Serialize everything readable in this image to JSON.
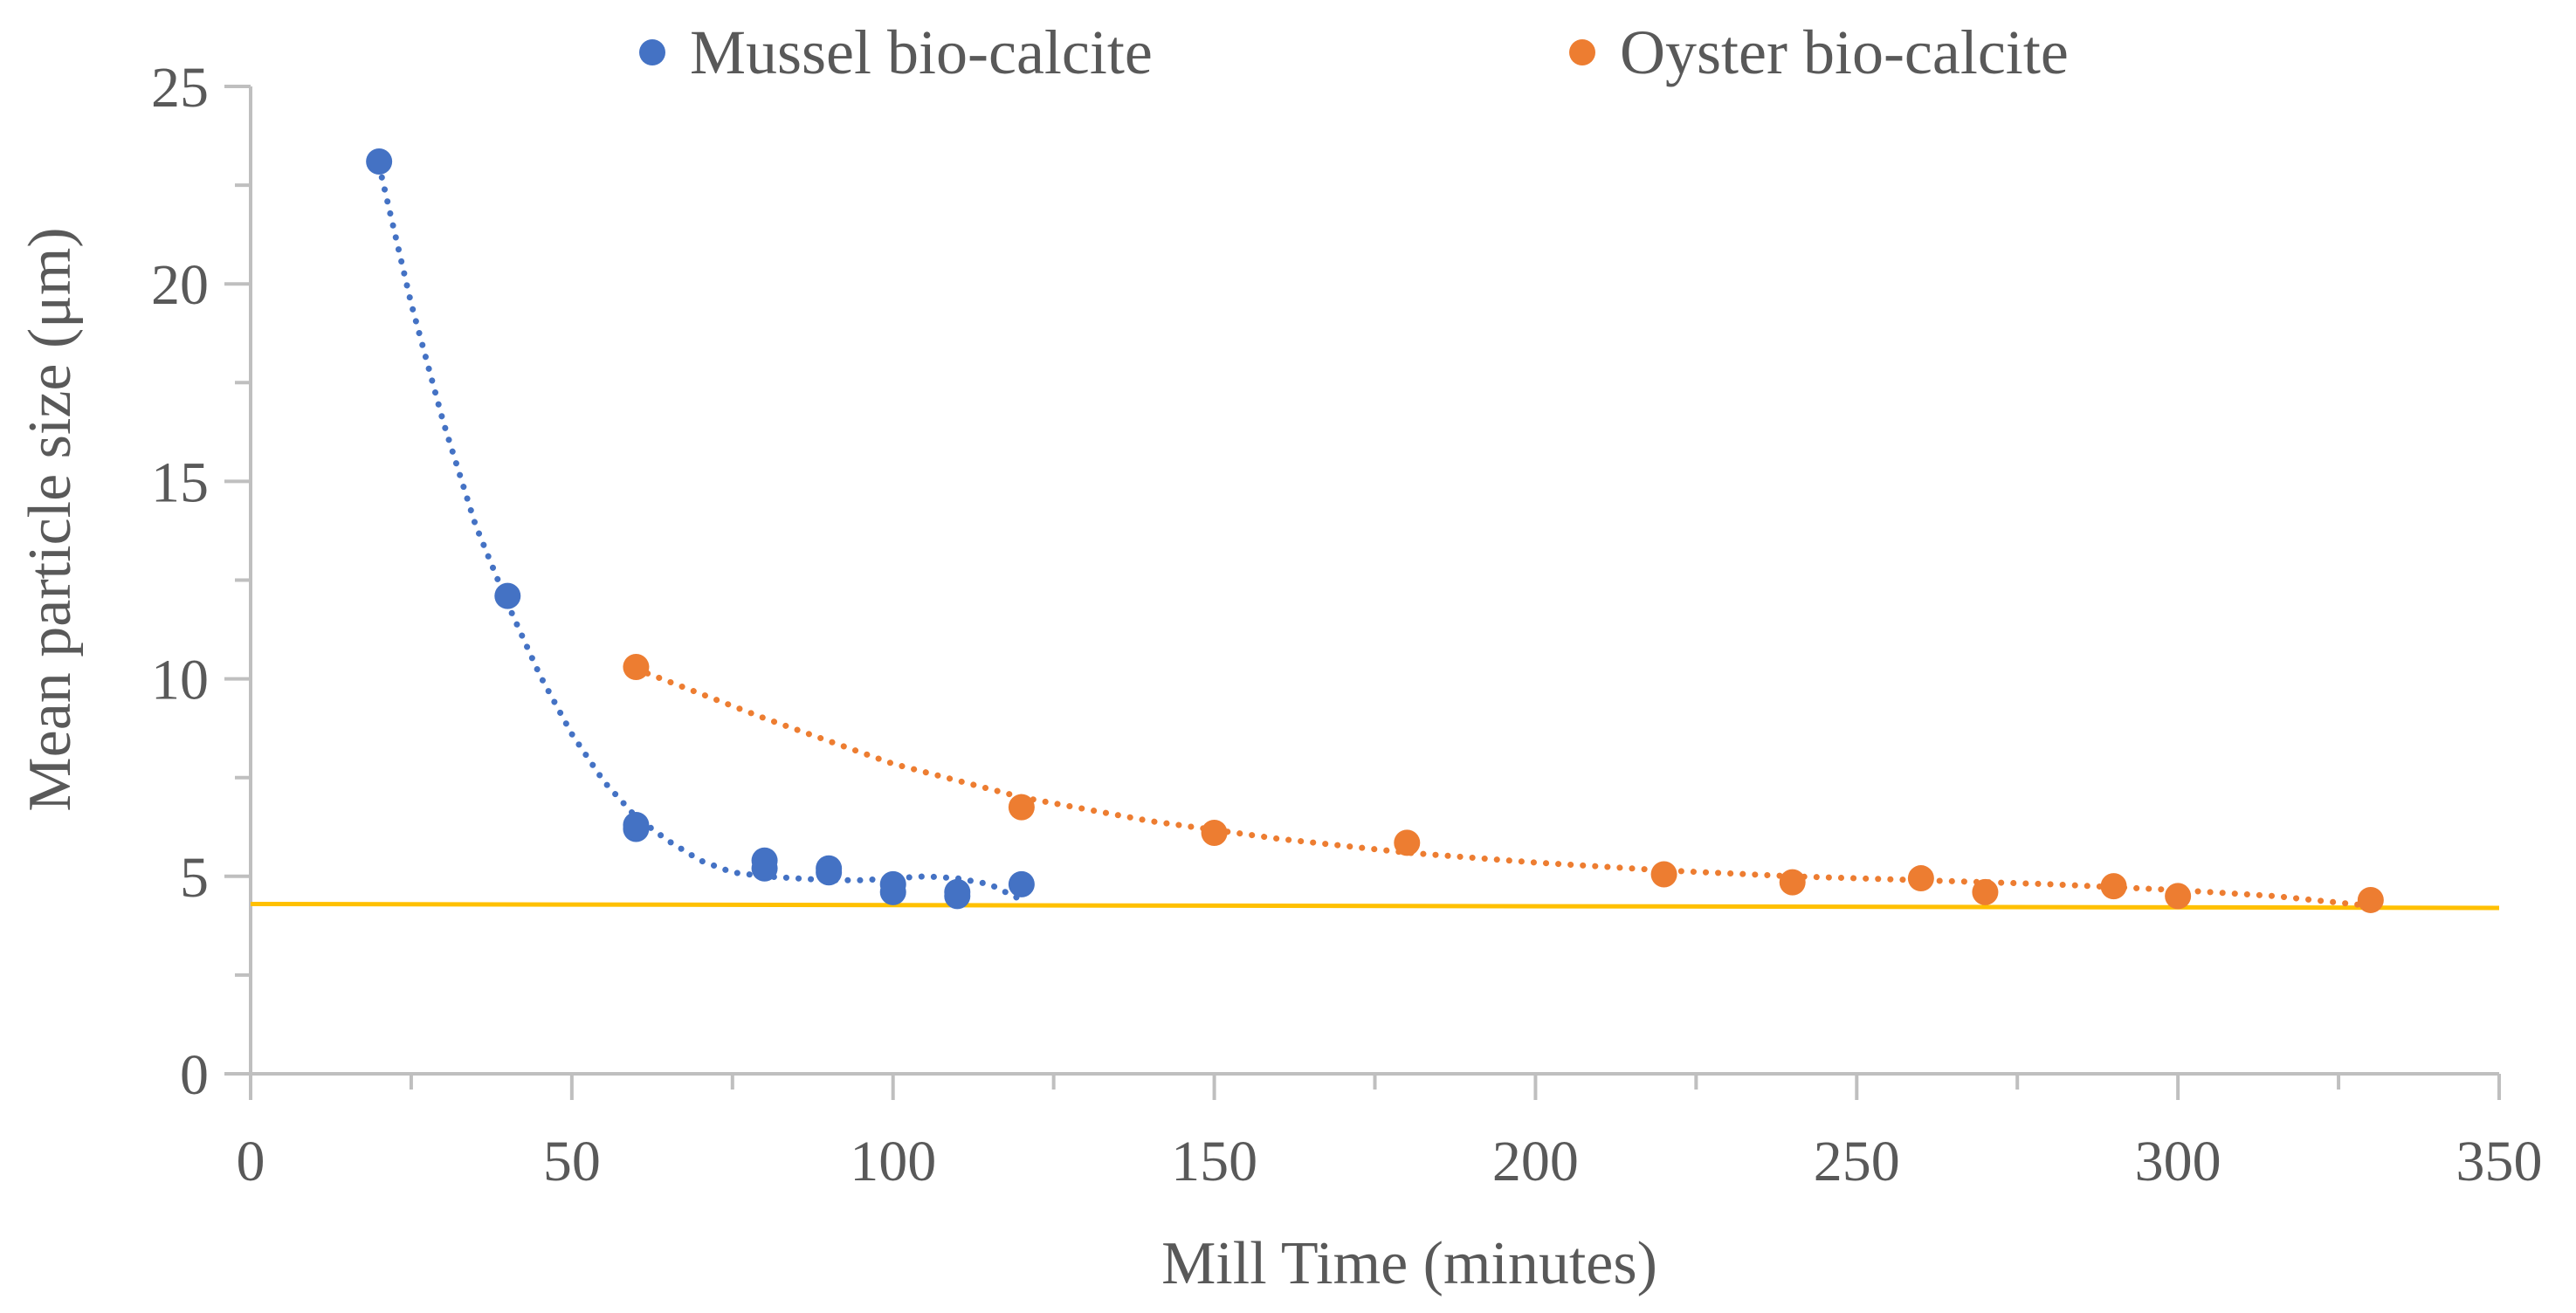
{
  "chart_data": {
    "type": "scatter",
    "title": "",
    "xlabel": "Mill Time (minutes)",
    "ylabel": "Mean particle size (μm)",
    "xlim": [
      0,
      350
    ],
    "ylim": [
      0,
      25
    ],
    "x_ticks": [
      0,
      50,
      100,
      150,
      200,
      250,
      300,
      350
    ],
    "y_ticks": [
      0,
      5,
      10,
      15,
      20,
      25
    ],
    "grid": false,
    "legend_position": "top",
    "series": [
      {
        "name": "Mussel bio-calcite",
        "color": "#4472C4",
        "points": [
          [
            20,
            23.1
          ],
          [
            40,
            12.1
          ],
          [
            60,
            6.2
          ],
          [
            60,
            6.3
          ],
          [
            80,
            5.4
          ],
          [
            80,
            5.2
          ],
          [
            90,
            5.2
          ],
          [
            90,
            5.1
          ],
          [
            100,
            4.8
          ],
          [
            100,
            4.6
          ],
          [
            110,
            4.6
          ],
          [
            110,
            4.5
          ],
          [
            120,
            4.8
          ]
        ],
        "trendline": [
          [
            20,
            23.0
          ],
          [
            25,
            19.5
          ],
          [
            30,
            16.5
          ],
          [
            35,
            13.9
          ],
          [
            40,
            11.9
          ],
          [
            45,
            10.1
          ],
          [
            50,
            8.6
          ],
          [
            55,
            7.4
          ],
          [
            60,
            6.5
          ],
          [
            65,
            5.9
          ],
          [
            70,
            5.4
          ],
          [
            75,
            5.1
          ],
          [
            80,
            5.0
          ],
          [
            85,
            4.95
          ],
          [
            90,
            4.9
          ],
          [
            95,
            4.9
          ],
          [
            100,
            4.95
          ],
          [
            105,
            5.0
          ],
          [
            110,
            4.95
          ],
          [
            115,
            4.8
          ],
          [
            120,
            4.4
          ]
        ]
      },
      {
        "name": "Oyster bio-calcite",
        "color": "#ED7D31",
        "points": [
          [
            60,
            10.3
          ],
          [
            120,
            6.75
          ],
          [
            150,
            6.1
          ],
          [
            180,
            5.85
          ],
          [
            220,
            5.05
          ],
          [
            240,
            4.85
          ],
          [
            260,
            4.95
          ],
          [
            270,
            4.6
          ],
          [
            290,
            4.75
          ],
          [
            300,
            4.5
          ],
          [
            330,
            4.4
          ]
        ],
        "trendline": [
          [
            60,
            10.25
          ],
          [
            80,
            9.0
          ],
          [
            100,
            7.85
          ],
          [
            120,
            7.0
          ],
          [
            140,
            6.4
          ],
          [
            160,
            5.95
          ],
          [
            180,
            5.6
          ],
          [
            200,
            5.35
          ],
          [
            220,
            5.15
          ],
          [
            240,
            5.0
          ],
          [
            260,
            4.9
          ],
          [
            280,
            4.8
          ],
          [
            300,
            4.65
          ],
          [
            315,
            4.5
          ],
          [
            330,
            4.25
          ]
        ]
      }
    ],
    "reference_line": {
      "color": "#FFC000",
      "from": [
        0,
        4.3
      ],
      "to": [
        350,
        4.2
      ]
    }
  }
}
